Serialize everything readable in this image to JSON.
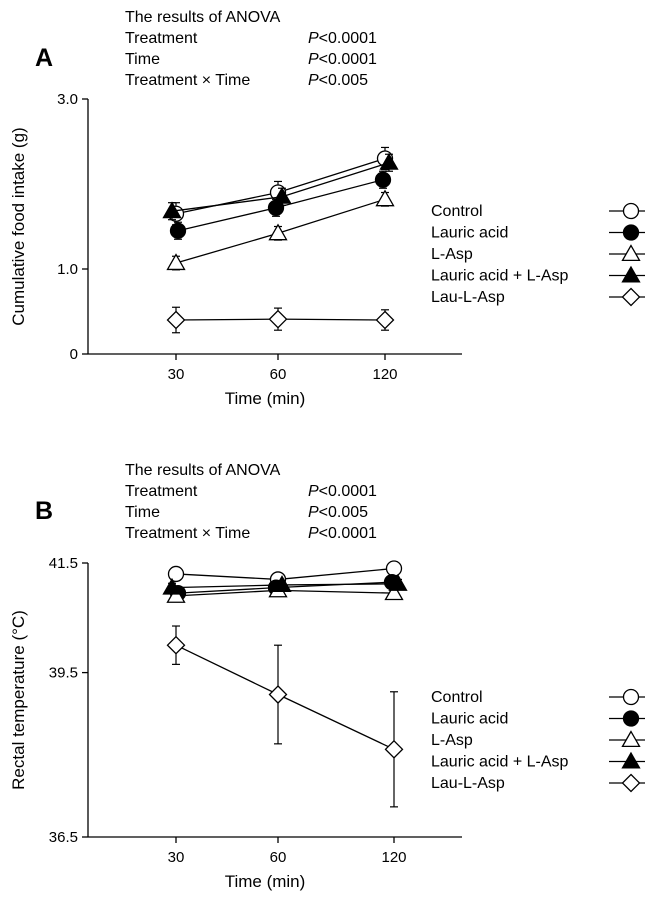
{
  "chart_data": [
    {
      "type": "line",
      "panel": "A",
      "anova": {
        "heading": "The results of ANOVA",
        "rows": [
          {
            "term": "Treatment",
            "p": "<0.0001"
          },
          {
            "term": "Time",
            "p": "<0.0001"
          },
          {
            "term": "Treatment × Time",
            "p": "<0.005"
          }
        ]
      },
      "xlabel": "Time (min)",
      "ylabel": "Cumulative food intake (g)",
      "x": [
        30,
        60,
        120
      ],
      "x_ticks": [
        "30",
        "60",
        "120"
      ],
      "y_ticks": [
        {
          "value": 0,
          "label": "0"
        },
        {
          "value": 1.0,
          "label": "1.0"
        },
        {
          "value": 3.0,
          "label": "3.0"
        }
      ],
      "ylim": [
        0,
        3.0
      ],
      "series": [
        {
          "name": "Control",
          "marker": "circle-open",
          "values": [
            1.65,
            1.9,
            2.3
          ],
          "errors": [
            0.13,
            0.13,
            0.13
          ]
        },
        {
          "name": "Lauric acid",
          "marker": "circle-filled",
          "values": [
            1.45,
            1.72,
            2.05
          ],
          "errors": [
            0.1,
            0.1,
            0.1
          ]
        },
        {
          "name": "L-Asp",
          "marker": "triangle-open",
          "values": [
            1.07,
            1.42,
            1.82
          ],
          "errors": [
            0.08,
            0.08,
            0.08
          ]
        },
        {
          "name": "Lauric acid + L-Asp",
          "marker": "triangle-filled",
          "values": [
            1.68,
            1.85,
            2.25
          ],
          "errors": [
            0.1,
            0.1,
            0.1
          ]
        },
        {
          "name": "Lau-L-Asp",
          "marker": "diamond-open",
          "values": [
            0.4,
            0.41,
            0.4
          ],
          "errors": [
            0.15,
            0.13,
            0.12
          ]
        }
      ]
    },
    {
      "type": "line",
      "panel": "B",
      "anova": {
        "heading": "The results of ANOVA",
        "rows": [
          {
            "term": "Treatment",
            "p": "<0.0001"
          },
          {
            "term": "Time",
            "p": "<0.005"
          },
          {
            "term": "Treatment × Time",
            "p": "<0.0001"
          }
        ]
      },
      "xlabel": "Time (min)",
      "ylabel": "Rectal temperature (°C)",
      "x": [
        30,
        60,
        120
      ],
      "x_ticks": [
        "30",
        "60",
        "120"
      ],
      "y_ticks": [
        {
          "value": 36.5,
          "label": "36.5"
        },
        {
          "value": 39.5,
          "label": "39.5"
        },
        {
          "value": 41.5,
          "label": "41.5"
        }
      ],
      "ylim": [
        36.5,
        41.5
      ],
      "series": [
        {
          "name": "Control",
          "marker": "circle-open",
          "values": [
            41.3,
            41.2,
            41.4
          ],
          "errors": [
            0.12,
            0.1,
            0.12
          ]
        },
        {
          "name": "Lauric acid",
          "marker": "circle-filled",
          "values": [
            40.95,
            41.05,
            41.15
          ],
          "errors": [
            0.1,
            0.1,
            0.1
          ]
        },
        {
          "name": "L-Asp",
          "marker": "triangle-open",
          "values": [
            40.9,
            41.0,
            40.95
          ],
          "errors": [
            0.08,
            0.1,
            0.1
          ]
        },
        {
          "name": "Lauric acid + L-Asp",
          "marker": "triangle-filled",
          "values": [
            41.05,
            41.1,
            41.12
          ],
          "errors": [
            0.08,
            0.08,
            0.08
          ]
        },
        {
          "name": "Lau-L-Asp",
          "marker": "diamond-open",
          "values": [
            40.0,
            39.1,
            38.1
          ],
          "errors": [
            0.35,
            0.9,
            1.05
          ]
        }
      ]
    }
  ]
}
